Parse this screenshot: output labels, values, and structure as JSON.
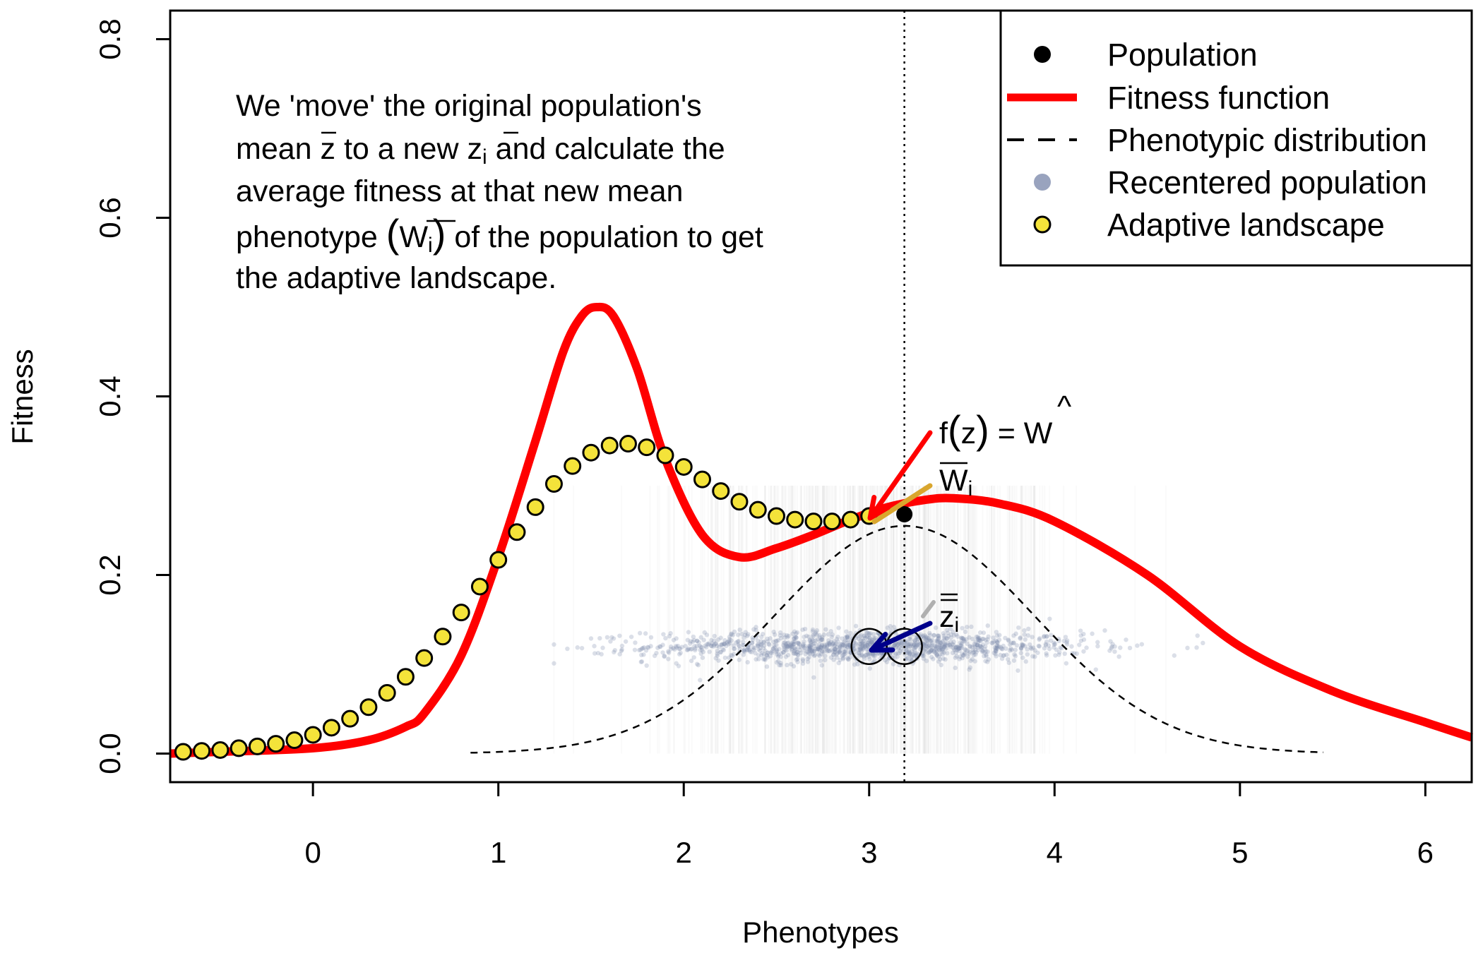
{
  "chart_data": {
    "type": "line",
    "xlabel": "Phenotypes",
    "ylabel": "Fitness",
    "xlim": [
      -0.77,
      6.25
    ],
    "ylim": [
      -0.032,
      0.832
    ],
    "xticks": [
      "0",
      "1",
      "2",
      "3",
      "4",
      "5",
      "6"
    ],
    "yticks": [
      "0.0",
      "0.2",
      "0.4",
      "0.6",
      "0.8"
    ],
    "grid": false,
    "legend_position": "top-right",
    "legend": [
      {
        "label": "Population",
        "symbol": "point",
        "color": "#000000"
      },
      {
        "label": "Fitness function",
        "symbol": "line",
        "color": "#ff0000"
      },
      {
        "label": "Phenotypic distribution",
        "symbol": "dashed-line",
        "color": "#000000"
      },
      {
        "label": "Recentered population",
        "symbol": "point",
        "color": "#7f8cae"
      },
      {
        "label": "Adaptive landscape",
        "symbol": "point",
        "color": "#f4e33a"
      }
    ],
    "fitness_function": {
      "name": "Fitness function",
      "color": "#ff0000",
      "x": [
        -0.77,
        -0.5,
        0,
        0.3,
        0.5,
        0.6,
        0.8,
        1.0,
        1.2,
        1.35,
        1.45,
        1.53,
        1.62,
        1.75,
        1.9,
        2.1,
        2.3,
        2.5,
        2.7,
        2.9,
        3.1,
        3.3,
        3.45,
        3.7,
        4.0,
        4.5,
        5.0,
        5.5,
        6.0,
        6.25
      ],
      "y": [
        0.0,
        0.002,
        0.006,
        0.015,
        0.03,
        0.045,
        0.11,
        0.22,
        0.35,
        0.45,
        0.49,
        0.5,
        0.49,
        0.43,
        0.33,
        0.245,
        0.22,
        0.23,
        0.245,
        0.262,
        0.276,
        0.284,
        0.286,
        0.28,
        0.26,
        0.2,
        0.12,
        0.07,
        0.035,
        0.018
      ]
    },
    "adaptive_landscape": {
      "name": "Adaptive landscape",
      "color": "#f4e33a",
      "x": [
        -0.7,
        -0.6,
        -0.5,
        -0.4,
        -0.3,
        -0.2,
        -0.1,
        0.0,
        0.1,
        0.2,
        0.3,
        0.4,
        0.5,
        0.6,
        0.7,
        0.8,
        0.9,
        1.0,
        1.1,
        1.2,
        1.3,
        1.4,
        1.5,
        1.6,
        1.7,
        1.8,
        1.9,
        2.0,
        2.1,
        2.2,
        2.3,
        2.4,
        2.5,
        2.6,
        2.7,
        2.8,
        2.9,
        3.0
      ],
      "y": [
        0.002,
        0.003,
        0.004,
        0.006,
        0.008,
        0.011,
        0.015,
        0.021,
        0.029,
        0.039,
        0.052,
        0.068,
        0.086,
        0.107,
        0.131,
        0.158,
        0.187,
        0.217,
        0.248,
        0.276,
        0.302,
        0.322,
        0.337,
        0.345,
        0.347,
        0.343,
        0.334,
        0.321,
        0.307,
        0.294,
        0.282,
        0.273,
        0.266,
        0.262,
        0.26,
        0.26,
        0.262,
        0.266
      ]
    },
    "phenotypic_distribution": {
      "name": "Phenotypic distribution",
      "style": "dashed",
      "mean": 3.19,
      "sd": 0.7,
      "peak": 0.255,
      "x_range": [
        0.85,
        5.45
      ]
    },
    "population_mean": {
      "x": 3.19,
      "y": 0.268
    },
    "vertical_reference_line": {
      "x": 3.19,
      "style": "dotted"
    },
    "recentered_population": {
      "color": "#7f8cae",
      "center_y": 0.12,
      "mean_x": 3.0,
      "sd_x": 0.62,
      "original_mean_x": 3.19
    },
    "annotations": {
      "text_lines": [
        [
          "We 'move' the original population's"
        ],
        [
          "mean ",
          "z",
          " to a new ",
          "z",
          "i",
          " and calculate the"
        ],
        [
          "average fitness at that new mean"
        ],
        [
          "phenotype ",
          "(",
          "W",
          "i",
          ")",
          " of the population to get"
        ],
        [
          "the adaptive landscape."
        ]
      ],
      "f_of_z": [
        "f",
        "(",
        "z",
        ")",
        " = ",
        "W",
        "^"
      ],
      "w_bar_i": [
        "W",
        "i"
      ],
      "z_bar_i": [
        "z",
        "i"
      ]
    }
  }
}
